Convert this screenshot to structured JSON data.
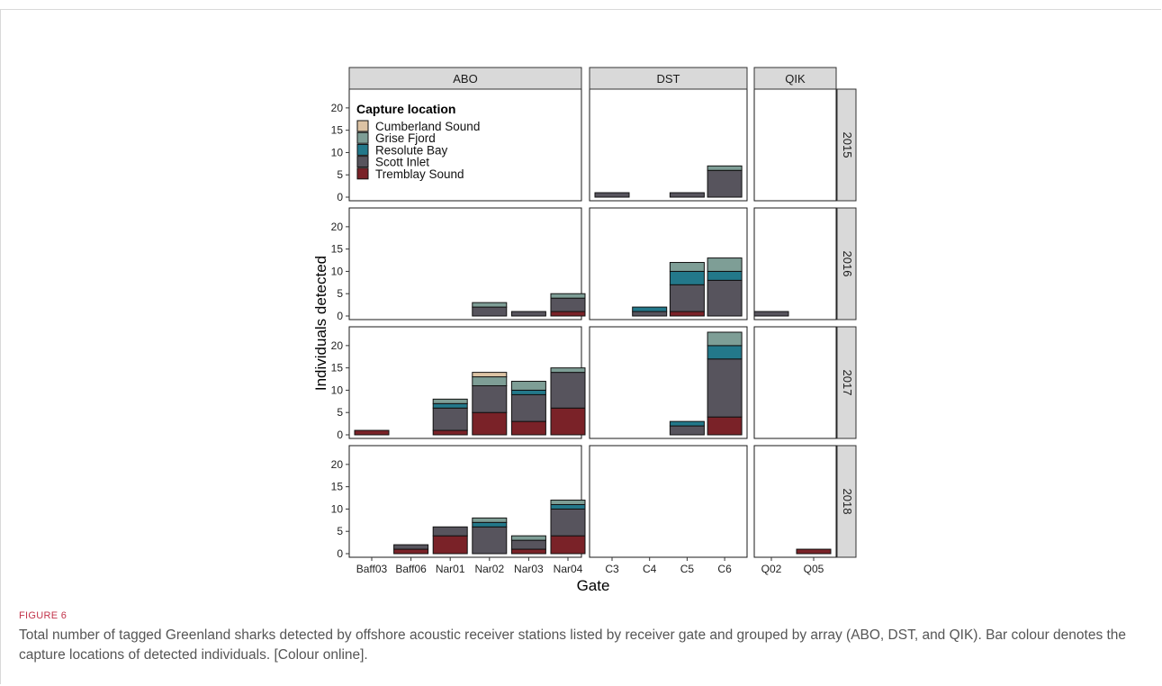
{
  "figure": {
    "label": "FIGURE 6",
    "caption": "Total number of tagged Greenland sharks detected by offshore acoustic receiver stations listed by receiver gate and grouped by array (ABO, DST, and QIK). Bar colour denotes the capture locations of detected individuals. [Colour online]."
  },
  "chart_data": {
    "type": "bar",
    "stacked": true,
    "faceted": true,
    "xlabel": "Gate",
    "ylabel": "Individuals detected",
    "ylim": [
      0,
      23
    ],
    "yticks": [
      0,
      5,
      10,
      15,
      20
    ],
    "legend": {
      "title": "Capture location",
      "placement": "inside top-left of first panel",
      "entries": [
        "Cumberland Sound",
        "Grise Fjord",
        "Resolute Bay",
        "Scott Inlet",
        "Tremblay Sound"
      ]
    },
    "stack_order": [
      "Tremblay Sound",
      "Scott Inlet",
      "Resolute Bay",
      "Grise Fjord",
      "Cumberland Sound"
    ],
    "colors": {
      "Cumberland Sound": "#dcc3a4",
      "Grise Fjord": "#7e9e96",
      "Resolute Bay": "#23788a",
      "Scott Inlet": "#57545d",
      "Tremblay Sound": "#7a2228"
    },
    "arrays": [
      {
        "name": "ABO",
        "gates": [
          "Baff03",
          "Baff06",
          "Nar01",
          "Nar02",
          "Nar03",
          "Nar04"
        ]
      },
      {
        "name": "DST",
        "gates": [
          "C3",
          "C4",
          "C5",
          "C6"
        ]
      },
      {
        "name": "QIK",
        "gates": [
          "Q02",
          "Q05"
        ]
      }
    ],
    "years": [
      "2015",
      "2016",
      "2017",
      "2018"
    ],
    "bars": [
      {
        "year": "2015",
        "array": "DST",
        "gate": "C3",
        "values": {
          "Scott Inlet": 1
        }
      },
      {
        "year": "2015",
        "array": "DST",
        "gate": "C5",
        "values": {
          "Scott Inlet": 1
        }
      },
      {
        "year": "2015",
        "array": "DST",
        "gate": "C6",
        "values": {
          "Scott Inlet": 6,
          "Grise Fjord": 1
        }
      },
      {
        "year": "2016",
        "array": "ABO",
        "gate": "Nar02",
        "values": {
          "Scott Inlet": 2,
          "Grise Fjord": 1
        }
      },
      {
        "year": "2016",
        "array": "ABO",
        "gate": "Nar03",
        "values": {
          "Scott Inlet": 1
        }
      },
      {
        "year": "2016",
        "array": "ABO",
        "gate": "Nar04",
        "values": {
          "Tremblay Sound": 1,
          "Scott Inlet": 3,
          "Grise Fjord": 1
        }
      },
      {
        "year": "2016",
        "array": "DST",
        "gate": "C4",
        "values": {
          "Scott Inlet": 1,
          "Resolute Bay": 1
        }
      },
      {
        "year": "2016",
        "array": "DST",
        "gate": "C5",
        "values": {
          "Tremblay Sound": 1,
          "Scott Inlet": 6,
          "Resolute Bay": 3,
          "Grise Fjord": 2
        }
      },
      {
        "year": "2016",
        "array": "DST",
        "gate": "C6",
        "values": {
          "Scott Inlet": 8,
          "Resolute Bay": 2,
          "Grise Fjord": 3
        }
      },
      {
        "year": "2016",
        "array": "QIK",
        "gate": "Q02",
        "values": {
          "Scott Inlet": 1
        }
      },
      {
        "year": "2017",
        "array": "ABO",
        "gate": "Baff03",
        "values": {
          "Tremblay Sound": 1
        }
      },
      {
        "year": "2017",
        "array": "ABO",
        "gate": "Nar01",
        "values": {
          "Tremblay Sound": 1,
          "Scott Inlet": 5,
          "Resolute Bay": 1,
          "Grise Fjord": 1
        }
      },
      {
        "year": "2017",
        "array": "ABO",
        "gate": "Nar02",
        "values": {
          "Tremblay Sound": 5,
          "Scott Inlet": 6,
          "Grise Fjord": 2,
          "Cumberland Sound": 1
        }
      },
      {
        "year": "2017",
        "array": "ABO",
        "gate": "Nar03",
        "values": {
          "Tremblay Sound": 3,
          "Scott Inlet": 6,
          "Resolute Bay": 1,
          "Grise Fjord": 2
        }
      },
      {
        "year": "2017",
        "array": "ABO",
        "gate": "Nar04",
        "values": {
          "Tremblay Sound": 6,
          "Scott Inlet": 8,
          "Grise Fjord": 1
        }
      },
      {
        "year": "2017",
        "array": "DST",
        "gate": "C5",
        "values": {
          "Scott Inlet": 2,
          "Resolute Bay": 1
        }
      },
      {
        "year": "2017",
        "array": "DST",
        "gate": "C6",
        "values": {
          "Tremblay Sound": 4,
          "Scott Inlet": 13,
          "Resolute Bay": 3,
          "Grise Fjord": 3
        }
      },
      {
        "year": "2018",
        "array": "ABO",
        "gate": "Baff06",
        "values": {
          "Tremblay Sound": 1,
          "Scott Inlet": 1
        }
      },
      {
        "year": "2018",
        "array": "ABO",
        "gate": "Nar01",
        "values": {
          "Tremblay Sound": 4,
          "Scott Inlet": 2
        }
      },
      {
        "year": "2018",
        "array": "ABO",
        "gate": "Nar02",
        "values": {
          "Scott Inlet": 6,
          "Resolute Bay": 1,
          "Grise Fjord": 1
        }
      },
      {
        "year": "2018",
        "array": "ABO",
        "gate": "Nar03",
        "values": {
          "Tremblay Sound": 1,
          "Scott Inlet": 2,
          "Grise Fjord": 1
        }
      },
      {
        "year": "2018",
        "array": "ABO",
        "gate": "Nar04",
        "values": {
          "Tremblay Sound": 4,
          "Scott Inlet": 6,
          "Resolute Bay": 1,
          "Grise Fjord": 1
        }
      },
      {
        "year": "2018",
        "array": "QIK",
        "gate": "Q05",
        "values": {
          "Tremblay Sound": 1
        }
      }
    ]
  }
}
